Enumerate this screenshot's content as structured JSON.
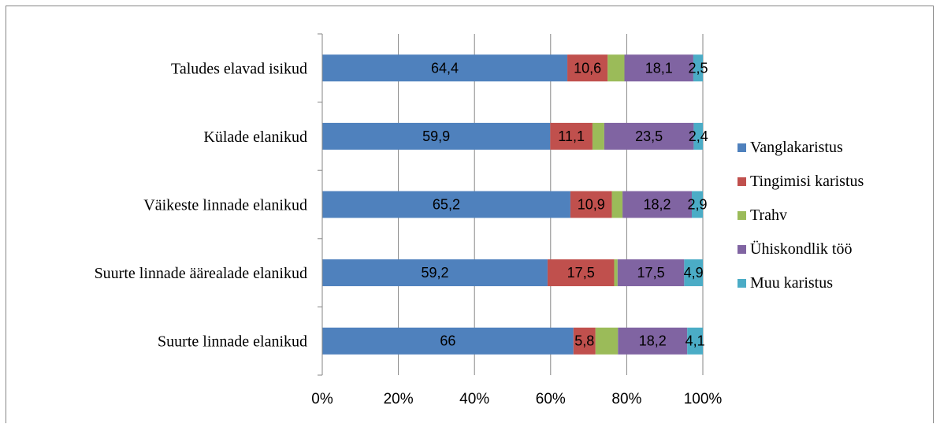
{
  "chart_data": {
    "type": "bar",
    "orientation": "horizontal",
    "stacked": "percent",
    "title": "",
    "categories": [
      "Taludes elavad isikud",
      "Külade elanikud",
      "Väikeste linnade elanikud",
      "Suurte linnade äärealade elanikud",
      "Suurte linnade elanikud"
    ],
    "series": [
      {
        "name": "Vanglakaristus",
        "color": "#4F81BD",
        "values": [
          64.4,
          59.9,
          65.2,
          59.2,
          66
        ],
        "labels": [
          "64,4",
          "59,9",
          "65,2",
          "59,2",
          "66"
        ]
      },
      {
        "name": "Tingimisi karistus",
        "color": "#C0504D",
        "values": [
          10.6,
          11.1,
          10.9,
          17.5,
          5.8
        ],
        "labels": [
          "10,6",
          "11,1",
          "10,9",
          "17,5",
          "5,8"
        ]
      },
      {
        "name": "Trahv",
        "color": "#9BBB59",
        "values": [
          4.4,
          3.1,
          2.8,
          0.9,
          5.9
        ],
        "labels": [
          "",
          "",
          "",
          "",
          ""
        ]
      },
      {
        "name": "Ühiskondlik töö",
        "color": "#8064A2",
        "values": [
          18.1,
          23.5,
          18.2,
          17.5,
          18.2
        ],
        "labels": [
          "18,1",
          "23,5",
          "18,2",
          "17,5",
          "18,2"
        ]
      },
      {
        "name": "Muu karistus",
        "color": "#4BACC6",
        "values": [
          2.5,
          2.4,
          2.9,
          4.9,
          4.1
        ],
        "labels": [
          "2,5",
          "2,4",
          "2,9",
          "4,9",
          "4,1"
        ]
      }
    ],
    "xticks": [
      "0%",
      "20%",
      "40%",
      "60%",
      "80%",
      "100%"
    ],
    "xlim": [
      0,
      100
    ],
    "grid": true,
    "legend": "right"
  }
}
